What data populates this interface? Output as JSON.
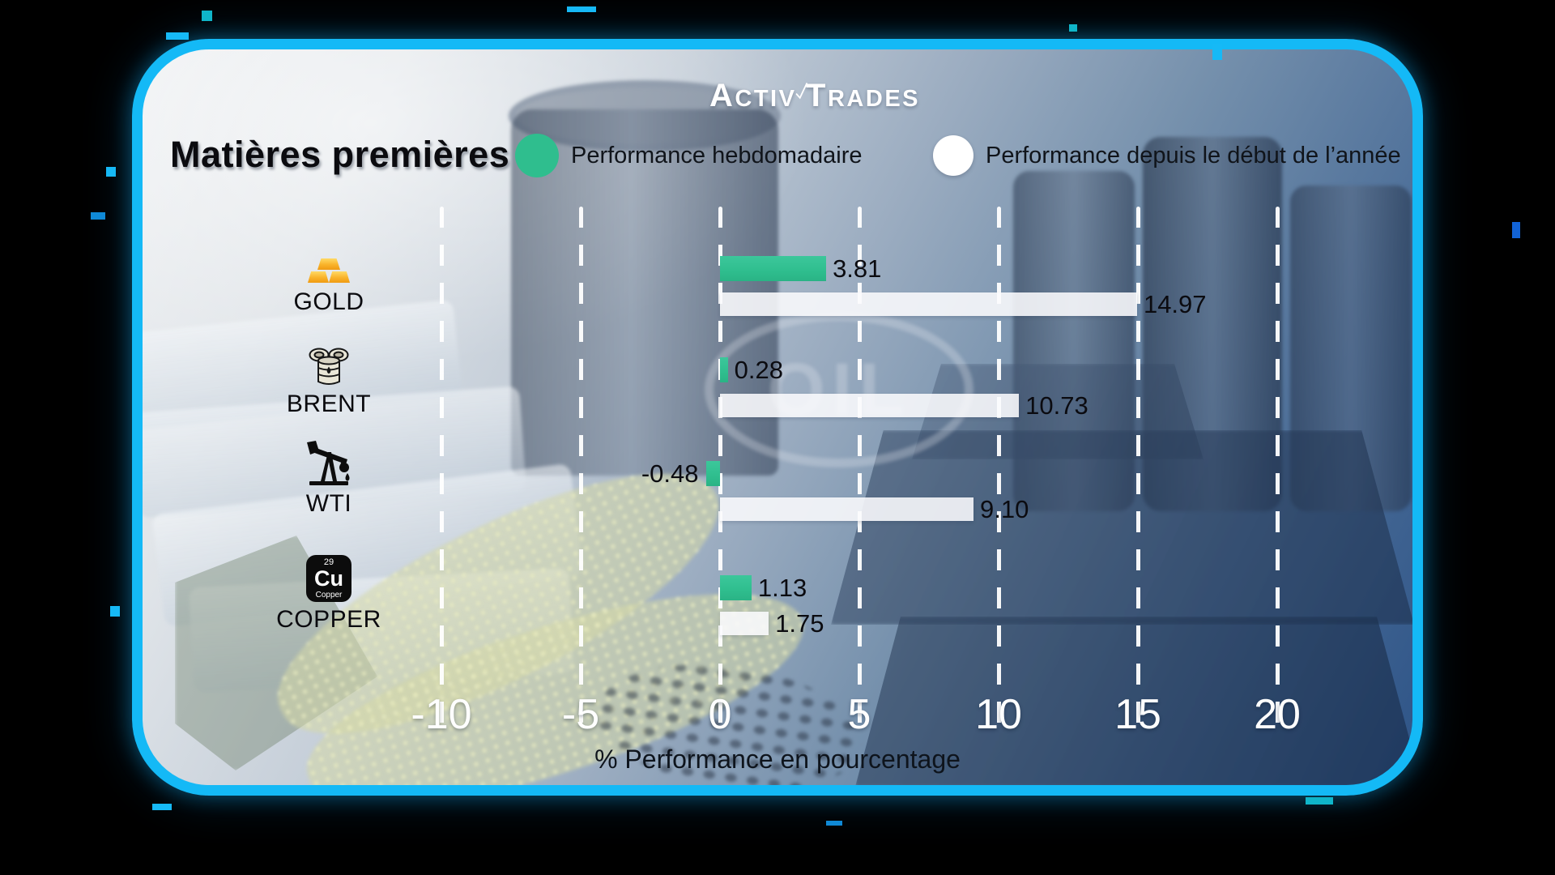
{
  "brand": {
    "word1": "Activ",
    "word2": "Trades"
  },
  "header": {
    "title": "Matières premières",
    "legend": [
      {
        "label": "Performance hebdomadaire",
        "color": "#2fbe8e"
      },
      {
        "label": "Performance depuis le début de l’année",
        "color": "#ffffff"
      }
    ]
  },
  "chart_data": {
    "type": "bar",
    "orientation": "horizontal",
    "title": "Matières premières",
    "categories": [
      "GOLD",
      "BRENT",
      "WTI",
      "COPPER"
    ],
    "series": [
      {
        "name": "Performance hebdomadaire",
        "color": "#2fbe8e",
        "values": [
          3.81,
          0.28,
          -0.48,
          1.13
        ]
      },
      {
        "name": "Performance depuis le début de l’année",
        "color": "#ffffff",
        "values": [
          14.97,
          10.73,
          9.1,
          1.75
        ]
      }
    ],
    "xlabel": "% Performance en pourcentage",
    "x_ticks": [
      -10,
      -5,
      0,
      5,
      10,
      15,
      20
    ],
    "xlim": [
      -12.5,
      22.5
    ],
    "grid": "vertical-dashed-white",
    "value_label_decimals": 2
  },
  "icons": {
    "gold": "gold-ingots-icon",
    "brent": "oil-barrels-icon",
    "wti": "oil-pump-icon",
    "copper": {
      "number": "29",
      "symbol": "Cu",
      "name": "Copper"
    }
  },
  "watermark": {
    "text": "OIL"
  }
}
